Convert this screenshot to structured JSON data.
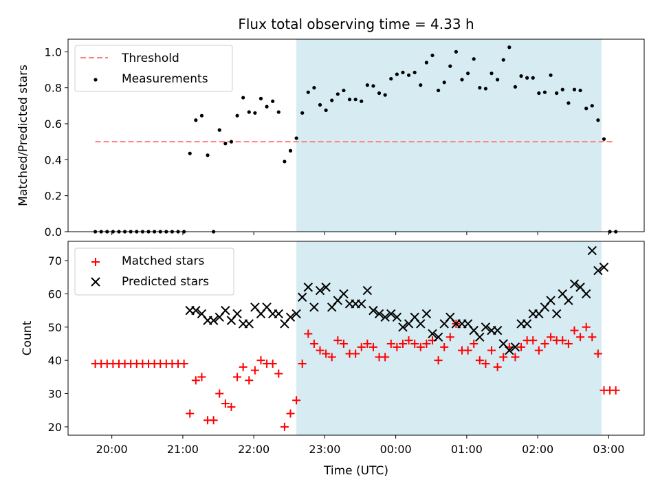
{
  "figure_title": "Flux total observing time = 4.33 h",
  "colors": {
    "threshold": "#ff7f7f",
    "measurements": "#000000",
    "matched": "#ff0000",
    "predicted": "#000000",
    "shade": "#add8e6"
  },
  "chart_data": [
    {
      "type": "scatter",
      "title": "Flux total observing time = 4.33 h",
      "xlabel": "",
      "ylabel": "Matched/Predicted stars",
      "x_unit": "UTC time",
      "xlim": [
        "19:23",
        "03:30"
      ],
      "ylim": [
        0.0,
        1.07
      ],
      "yticks": [
        "0.0",
        "0.2",
        "0.4",
        "0.6",
        "0.8",
        "1.0"
      ],
      "shaded_interval": [
        "22:36",
        "02:54"
      ],
      "legend_position": "top-left",
      "legend": [
        "Threshold",
        "Measurements"
      ],
      "threshold": {
        "name": "Threshold",
        "y": 0.5,
        "x_range": [
          "19:46",
          "03:04"
        ],
        "style": "dashed"
      },
      "series": [
        {
          "name": "Measurements",
          "x": [
            "19:46",
            "19:51",
            "19:56",
            "20:01",
            "20:06",
            "20:11",
            "20:16",
            "20:21",
            "20:26",
            "20:31",
            "20:36",
            "20:41",
            "20:46",
            "20:51",
            "20:56",
            "21:01",
            "21:06",
            "21:11",
            "21:16",
            "21:21",
            "21:26",
            "21:31",
            "21:36",
            "21:41",
            "21:46",
            "21:51",
            "21:56",
            "22:01",
            "22:06",
            "22:11",
            "22:16",
            "22:21",
            "22:26",
            "22:31",
            "22:36",
            "22:41",
            "22:46",
            "22:51",
            "22:56",
            "23:01",
            "23:06",
            "23:11",
            "23:16",
            "23:21",
            "23:26",
            "23:31",
            "23:36",
            "23:41",
            "23:46",
            "23:51",
            "23:56",
            "00:01",
            "00:06",
            "00:11",
            "00:16",
            "00:21",
            "00:26",
            "00:31",
            "00:36",
            "00:41",
            "00:46",
            "00:51",
            "00:56",
            "01:01",
            "01:06",
            "01:11",
            "01:16",
            "01:21",
            "01:26",
            "01:31",
            "01:36",
            "01:41",
            "01:46",
            "01:51",
            "01:56",
            "02:01",
            "02:06",
            "02:11",
            "02:16",
            "02:21",
            "02:26",
            "02:31",
            "02:36",
            "02:41",
            "02:46",
            "02:51",
            "02:56",
            "03:01",
            "03:06"
          ],
          "y": [
            0.0,
            0.0,
            0.0,
            0.0,
            0.0,
            0.0,
            0.0,
            0.0,
            0.0,
            0.0,
            0.0,
            0.0,
            0.0,
            0.0,
            0.0,
            0.0,
            0.435,
            0.62,
            0.645,
            0.425,
            0.0,
            0.565,
            0.49,
            0.5,
            0.645,
            0.745,
            0.665,
            0.66,
            0.74,
            0.695,
            0.725,
            0.665,
            0.39,
            0.45,
            0.52,
            0.66,
            0.775,
            0.8,
            0.705,
            0.675,
            0.73,
            0.765,
            0.785,
            0.735,
            0.735,
            0.725,
            0.815,
            0.81,
            0.77,
            0.76,
            0.85,
            0.875,
            0.885,
            0.87,
            0.885,
            0.815,
            0.94,
            0.98,
            0.785,
            0.83,
            0.92,
            1.0,
            0.845,
            0.88,
            0.96,
            0.8,
            0.795,
            0.88,
            0.845,
            0.955,
            1.025,
            0.805,
            0.865,
            0.855,
            0.855,
            0.77,
            0.775,
            0.87,
            0.77,
            0.79,
            0.715,
            0.79,
            0.785,
            0.685,
            0.7,
            0.62,
            0.515,
            0.0,
            0.0
          ]
        }
      ]
    },
    {
      "type": "scatter",
      "title": "",
      "xlabel": "Time (UTC)",
      "ylabel": "Count",
      "x_unit": "UTC time",
      "xlim": [
        "19:23",
        "03:30"
      ],
      "ylim": [
        17.5,
        75.8
      ],
      "xticks": [
        "20:00",
        "21:00",
        "22:00",
        "23:00",
        "00:00",
        "01:00",
        "02:00",
        "03:00"
      ],
      "yticks": [
        "20",
        "30",
        "40",
        "50",
        "60",
        "70"
      ],
      "shaded_interval": [
        "22:36",
        "02:54"
      ],
      "legend_position": "top-left",
      "legend": [
        "Matched stars",
        "Predicted stars"
      ],
      "series": [
        {
          "name": "Matched stars",
          "x": [
            "19:46",
            "19:51",
            "19:56",
            "20:01",
            "20:06",
            "20:11",
            "20:16",
            "20:21",
            "20:26",
            "20:31",
            "20:36",
            "20:41",
            "20:46",
            "20:51",
            "20:56",
            "21:01",
            "21:06",
            "21:11",
            "21:16",
            "21:21",
            "21:26",
            "21:31",
            "21:36",
            "21:41",
            "21:46",
            "21:51",
            "21:56",
            "22:01",
            "22:06",
            "22:11",
            "22:16",
            "22:21",
            "22:26",
            "22:31",
            "22:36",
            "22:41",
            "22:46",
            "22:51",
            "22:56",
            "23:01",
            "23:06",
            "23:11",
            "23:16",
            "23:21",
            "23:26",
            "23:31",
            "23:36",
            "23:41",
            "23:46",
            "23:51",
            "23:56",
            "00:01",
            "00:06",
            "00:11",
            "00:16",
            "00:21",
            "00:26",
            "00:31",
            "00:36",
            "00:41",
            "00:46",
            "00:51",
            "00:56",
            "01:01",
            "01:06",
            "01:11",
            "01:16",
            "01:21",
            "01:26",
            "01:31",
            "01:36",
            "01:41",
            "01:46",
            "01:51",
            "01:56",
            "02:01",
            "02:06",
            "02:11",
            "02:16",
            "02:21",
            "02:26",
            "02:31",
            "02:36",
            "02:41",
            "02:46",
            "02:51",
            "02:56",
            "03:01",
            "03:06"
          ],
          "y": [
            39,
            39,
            39,
            39,
            39,
            39,
            39,
            39,
            39,
            39,
            39,
            39,
            39,
            39,
            39,
            39,
            24,
            34,
            35,
            22,
            22,
            30,
            27,
            26,
            35,
            38,
            34,
            37,
            40,
            39,
            39,
            36,
            20,
            24,
            28,
            39,
            48,
            45,
            43,
            42,
            41,
            46,
            45,
            42,
            42,
            44,
            45,
            44,
            41,
            41,
            45,
            44,
            45,
            46,
            45,
            44,
            45,
            46,
            40,
            44,
            47,
            51,
            43,
            43,
            45,
            40,
            39,
            43,
            38,
            41,
            44,
            41,
            44,
            46,
            46,
            43,
            45,
            47,
            46,
            46,
            45,
            49,
            47,
            50,
            47,
            42,
            31,
            31,
            31
          ]
        },
        {
          "name": "Predicted stars",
          "x": [
            "21:06",
            "21:11",
            "21:16",
            "21:21",
            "21:26",
            "21:31",
            "21:36",
            "21:41",
            "21:46",
            "21:51",
            "21:56",
            "22:01",
            "22:06",
            "22:11",
            "22:16",
            "22:21",
            "22:26",
            "22:31",
            "22:36",
            "22:41",
            "22:46",
            "22:51",
            "22:56",
            "23:01",
            "23:06",
            "23:11",
            "23:16",
            "23:21",
            "23:26",
            "23:31",
            "23:36",
            "23:41",
            "23:46",
            "23:51",
            "23:56",
            "00:01",
            "00:06",
            "00:11",
            "00:16",
            "00:21",
            "00:26",
            "00:31",
            "00:36",
            "00:41",
            "00:46",
            "00:51",
            "00:56",
            "01:01",
            "01:06",
            "01:11",
            "01:16",
            "01:21",
            "01:26",
            "01:31",
            "01:36",
            "01:41",
            "01:46",
            "01:51",
            "01:56",
            "02:01",
            "02:06",
            "02:11",
            "02:16",
            "02:21",
            "02:26",
            "02:31",
            "02:36",
            "02:41",
            "02:46",
            "02:51",
            "02:56"
          ],
          "y": [
            55,
            55,
            54,
            52,
            52,
            53,
            55,
            52,
            54,
            51,
            51,
            56,
            54,
            56,
            54,
            54,
            51,
            53,
            54,
            59,
            62,
            56,
            61,
            62,
            56,
            58,
            60,
            57,
            57,
            57,
            61,
            55,
            54,
            53,
            54,
            53,
            50,
            51,
            53,
            51,
            54,
            48,
            47,
            51,
            53,
            51,
            51,
            51,
            49,
            47,
            50,
            49,
            49,
            45,
            43,
            44,
            51,
            51,
            54,
            54,
            56,
            58,
            54,
            60,
            58,
            63,
            62,
            60,
            73,
            67,
            68
          ]
        }
      ]
    }
  ]
}
